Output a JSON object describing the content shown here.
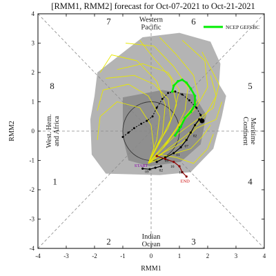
{
  "chart_data": {
    "type": "line",
    "title": "[RMM1, RMM2] forecast for Oct-07-2021 to Oct-21-2021",
    "xlabel": "RMM1",
    "ylabel": "RMM2",
    "xlim": [
      -4,
      4
    ],
    "ylim": [
      -4,
      4
    ],
    "x_ticks": [
      -4,
      -3,
      -2,
      -1,
      0,
      1,
      2,
      3,
      4
    ],
    "y_ticks": [
      -4,
      -3,
      -2,
      -1,
      0,
      1,
      2,
      3,
      4
    ],
    "grid": "dashed diagonals and axes",
    "legend_position": "top-right",
    "legend": [
      {
        "label": "NCEP GEFSBC",
        "color": "#00ee00"
      }
    ],
    "phases": [
      {
        "label": "1",
        "x": -3.4,
        "y": -1.7
      },
      {
        "label": "2",
        "x": -1.5,
        "y": -3.75
      },
      {
        "label": "3",
        "x": 1.5,
        "y": -3.75
      },
      {
        "label": "4",
        "x": 3.5,
        "y": -1.7
      },
      {
        "label": "5",
        "x": 3.5,
        "y": 1.55
      },
      {
        "label": "6",
        "x": 1.5,
        "y": 3.75
      },
      {
        "label": "7",
        "x": -1.5,
        "y": 3.75
      },
      {
        "label": "8",
        "x": -3.5,
        "y": 1.55
      }
    ],
    "regions": [
      {
        "lines": [
          "Western",
          "Pacific"
        ],
        "x": 0,
        "y": 3.7
      },
      {
        "lines": [
          "Indian",
          "Ocean"
        ],
        "x": 0,
        "y": -3.7
      },
      {
        "lines": [
          "Maritime",
          "Continent"
        ],
        "x": 3.5,
        "y": 0,
        "rotate": 90
      },
      {
        "lines": [
          "West. Hem.",
          "and Africa"
        ],
        "x": -3.5,
        "y": 0,
        "rotate": -90
      }
    ],
    "point_labels": [
      {
        "text": "START",
        "x": -0.35,
        "y": -1.22,
        "color": "#8800aa"
      },
      {
        "text": "END",
        "x": 1.2,
        "y": -1.75,
        "color": "#cc0000"
      }
    ],
    "colors": {
      "outer_spread": "#b4b4b4",
      "inner_spread": "#8f8f8f",
      "ensemble": "#e8e800",
      "ensemble_mean": "#00ee00",
      "observed": "#000000",
      "labels_dark": "#1a1a1a"
    },
    "outer_spread": [
      [
        -1.9,
        2.0
      ],
      [
        -0.3,
        3.2
      ],
      [
        1.0,
        3.35
      ],
      [
        2.1,
        3.05
      ],
      [
        2.45,
        2.3
      ],
      [
        2.4,
        1.6
      ],
      [
        2.65,
        1.2
      ],
      [
        2.5,
        0.5
      ],
      [
        2.2,
        -0.6
      ],
      [
        1.4,
        -1.4
      ],
      [
        0.3,
        -1.5
      ],
      [
        -1.6,
        -1.45
      ],
      [
        -2.1,
        -0.8
      ],
      [
        -2.15,
        0.4
      ],
      [
        -2.0,
        1.2
      ]
    ],
    "inner_spread": [
      [
        -1.0,
        1.15
      ],
      [
        0.4,
        1.4
      ],
      [
        1.5,
        1.25
      ],
      [
        1.95,
        0.55
      ],
      [
        1.75,
        -0.45
      ],
      [
        1.05,
        -1.05
      ],
      [
        -0.05,
        -1.2
      ],
      [
        -0.8,
        -1.0
      ],
      [
        -1.0,
        -0.2
      ]
    ],
    "unit_circle": {
      "cx": 0,
      "cy": 0,
      "r": 1
    },
    "ensemble_members": [
      [
        [
          -0.1,
          -1.1
        ],
        [
          0.4,
          -0.6
        ],
        [
          0.9,
          0.1
        ],
        [
          1.2,
          0.7
        ],
        [
          1.3,
          1.5
        ],
        [
          0.8,
          2.2
        ],
        [
          0.1,
          2.9
        ],
        [
          -0.9,
          3.0
        ]
      ],
      [
        [
          -0.1,
          -1.1
        ],
        [
          0.5,
          -0.5
        ],
        [
          1.0,
          0.2
        ],
        [
          1.6,
          0.8
        ],
        [
          2.0,
          1.5
        ],
        [
          1.9,
          2.4
        ],
        [
          1.1,
          3.1
        ]
      ],
      [
        [
          -0.1,
          -1.1
        ],
        [
          0.3,
          -0.4
        ],
        [
          0.7,
          0.4
        ],
        [
          0.6,
          1.1
        ],
        [
          0.1,
          1.6
        ],
        [
          -0.6,
          1.9
        ],
        [
          -1.6,
          1.8
        ]
      ],
      [
        [
          -0.1,
          -1.1
        ],
        [
          0.6,
          -0.6
        ],
        [
          1.3,
          -0.1
        ],
        [
          1.9,
          0.5
        ],
        [
          2.3,
          1.2
        ],
        [
          2.1,
          1.9
        ]
      ],
      [
        [
          -0.1,
          -1.1
        ],
        [
          0.2,
          -0.3
        ],
        [
          0.3,
          0.5
        ],
        [
          -0.1,
          1.2
        ],
        [
          -0.8,
          1.6
        ],
        [
          -1.7,
          1.4
        ],
        [
          -1.9,
          0.7
        ]
      ],
      [
        [
          -0.1,
          -1.1
        ],
        [
          0.5,
          -0.7
        ],
        [
          1.1,
          -0.4
        ],
        [
          1.6,
          0.1
        ],
        [
          2.3,
          0.4
        ],
        [
          2.5,
          1.0
        ]
      ],
      [
        [
          -0.1,
          -1.1
        ],
        [
          0.4,
          -0.2
        ],
        [
          0.8,
          0.6
        ],
        [
          1.0,
          1.4
        ],
        [
          0.6,
          2.0
        ],
        [
          -0.3,
          2.3
        ],
        [
          -1.2,
          2.1
        ]
      ],
      [
        [
          -0.1,
          -1.1
        ],
        [
          0.7,
          -0.8
        ],
        [
          1.4,
          -0.6
        ],
        [
          1.8,
          -0.2
        ],
        [
          2.1,
          0.2
        ]
      ],
      [
        [
          -0.1,
          -1.1
        ],
        [
          0.1,
          -0.6
        ],
        [
          0.0,
          0.2
        ],
        [
          -0.4,
          0.8
        ],
        [
          -1.2,
          1.0
        ],
        [
          -1.8,
          0.5
        ],
        [
          -1.9,
          -0.3
        ]
      ],
      [
        [
          -0.1,
          -1.1
        ],
        [
          0.6,
          -0.3
        ],
        [
          1.2,
          0.5
        ],
        [
          1.7,
          1.1
        ],
        [
          1.5,
          1.9
        ],
        [
          0.9,
          2.6
        ],
        [
          0.3,
          3.2
        ]
      ],
      [
        [
          -0.1,
          -1.1
        ],
        [
          0.3,
          -0.8
        ],
        [
          0.9,
          -0.9
        ],
        [
          1.5,
          -1.1
        ],
        [
          2.0,
          -0.6
        ],
        [
          2.2,
          -0.1
        ]
      ],
      [
        [
          -0.1,
          -1.1
        ],
        [
          0.4,
          -0.1
        ],
        [
          0.5,
          0.9
        ],
        [
          0.2,
          1.7
        ],
        [
          -0.5,
          2.4
        ],
        [
          -1.4,
          2.6
        ],
        [
          -1.8,
          2.0
        ]
      ],
      [
        [
          -0.1,
          -1.1
        ],
        [
          0.8,
          -0.2
        ],
        [
          1.5,
          0.3
        ],
        [
          2.2,
          0.8
        ],
        [
          2.4,
          1.6
        ],
        [
          1.8,
          2.7
        ]
      ],
      [
        [
          -0.1,
          -1.1
        ],
        [
          0.2,
          -0.5
        ],
        [
          0.6,
          0.1
        ],
        [
          0.9,
          0.9
        ],
        [
          0.7,
          1.8
        ],
        [
          0.0,
          2.6
        ],
        [
          -0.4,
          3.1
        ]
      ]
    ],
    "ensemble_mean": [
      [
        0.85,
        -0.15
      ],
      [
        1.05,
        0.15
      ],
      [
        1.2,
        0.45
      ],
      [
        1.4,
        0.65
      ],
      [
        1.55,
        0.9
      ],
      [
        1.55,
        1.2
      ],
      [
        1.4,
        1.45
      ],
      [
        1.25,
        1.65
      ],
      [
        1.1,
        1.75
      ],
      [
        0.95,
        1.7
      ],
      [
        0.8,
        1.55
      ],
      [
        0.75,
        1.35
      ]
    ],
    "observed": {
      "points": [
        [
          -1.0,
          -0.2
        ],
        [
          -0.8,
          -0.05
        ],
        [
          -0.6,
          0.1
        ],
        [
          -0.35,
          0.25
        ],
        [
          -0.15,
          0.35
        ],
        [
          0.05,
          0.5
        ],
        [
          0.2,
          0.8
        ],
        [
          0.4,
          1.1
        ],
        [
          0.6,
          1.3
        ],
        [
          0.85,
          1.35
        ],
        [
          1.1,
          1.25
        ],
        [
          1.35,
          1.05
        ],
        [
          1.6,
          0.8
        ],
        [
          1.75,
          0.55
        ],
        [
          1.8,
          0.35
        ]
      ],
      "last_marker": [
        1.8,
        0.35
      ]
    },
    "black_track": {
      "points": [
        [
          0.2,
          -1.05
        ],
        [
          0.5,
          -0.9
        ],
        [
          0.8,
          -0.75
        ],
        [
          1.05,
          -0.55
        ],
        [
          1.25,
          -0.3
        ],
        [
          1.4,
          -0.05
        ],
        [
          1.55,
          0.2
        ],
        [
          1.7,
          0.4
        ]
      ],
      "day_labels": [
        {
          "text": "09",
          "x": 0.55,
          "y": -1.05
        },
        {
          "text": "01",
          "x": 0.95,
          "y": -0.85
        },
        {
          "text": "07",
          "x": 1.25,
          "y": -0.55
        },
        {
          "text": "02",
          "x": 1.55,
          "y": -0.2
        }
      ]
    },
    "red_track": {
      "points": [
        [
          0.2,
          -0.85
        ],
        [
          0.5,
          -0.95
        ],
        [
          0.8,
          -1.05
        ],
        [
          1.0,
          -1.2
        ],
        [
          1.1,
          -1.4
        ],
        [
          1.25,
          -1.55
        ]
      ],
      "day_labels": [
        {
          "text": "16",
          "x": 0.75,
          "y": -1.25
        },
        {
          "text": "18",
          "x": 1.05,
          "y": -1.45
        }
      ]
    },
    "start_track": {
      "points": [
        [
          -0.3,
          -1.28
        ],
        [
          -0.05,
          -1.3
        ],
        [
          0.15,
          -1.25
        ],
        [
          0.35,
          -1.2
        ]
      ],
      "day_labels": [
        {
          "text": "09",
          "x": -0.15,
          "y": -1.42
        },
        {
          "text": "02",
          "x": 0.35,
          "y": -1.38
        }
      ]
    }
  }
}
